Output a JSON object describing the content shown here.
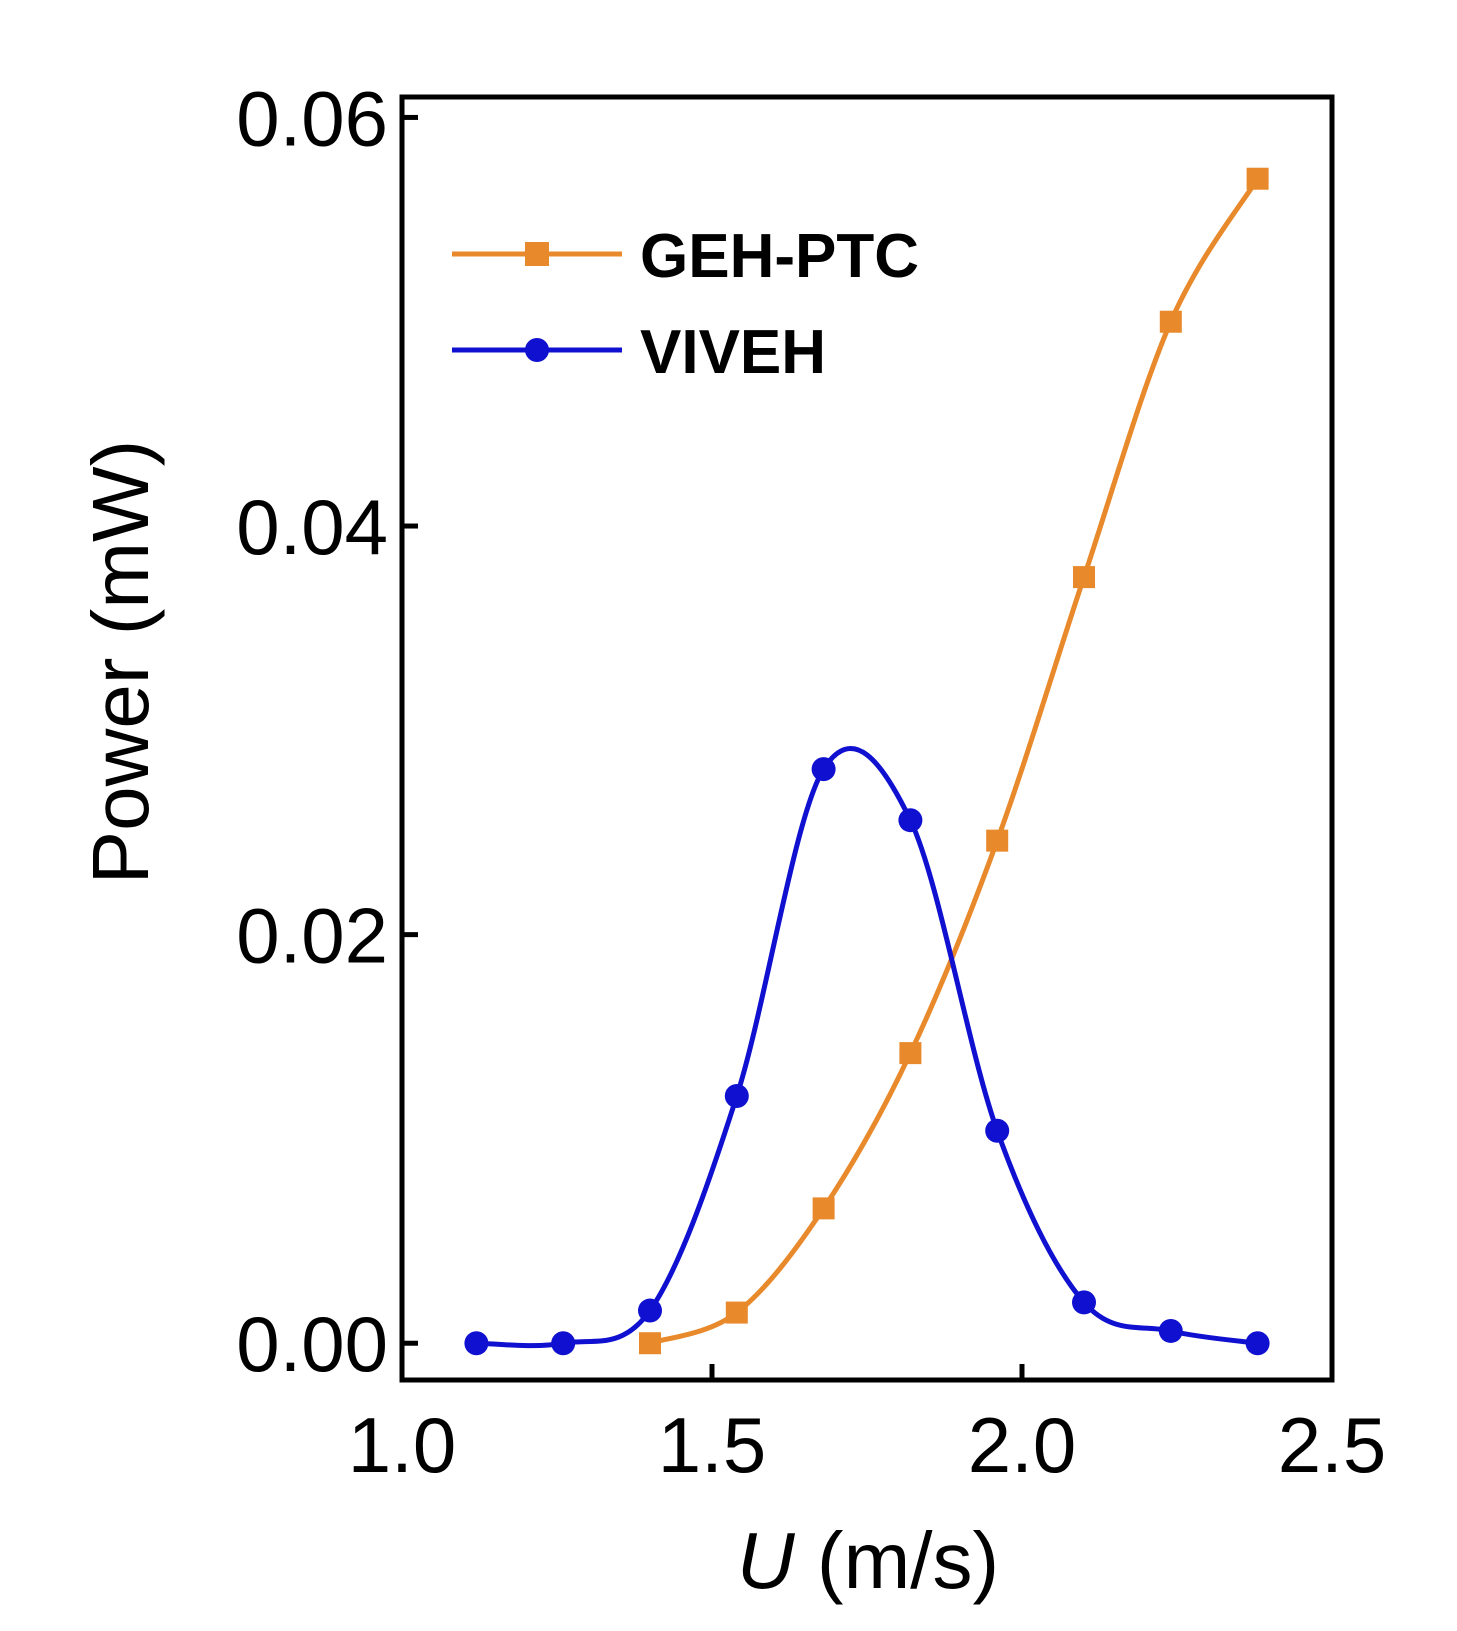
{
  "chart_data": {
    "type": "line",
    "title": "",
    "xlabel": "U",
    "xlabel_unit": " (m/s)",
    "ylabel": "Power (mW)",
    "xlim": [
      1.0,
      2.5
    ],
    "ylim": [
      -0.0018,
      0.061
    ],
    "xticks": [
      1.0,
      1.5,
      2.0,
      2.5
    ],
    "xtick_labels": [
      "1.0",
      "1.5",
      "2.0",
      "2.5"
    ],
    "yticks": [
      0.0,
      0.02,
      0.04,
      0.06
    ],
    "ytick_labels": [
      "0.00",
      "0.02",
      "0.04",
      "0.06"
    ],
    "grid": false,
    "legend_position": "top-left",
    "series": [
      {
        "name": "GEH-PTC",
        "color": "#E8892B",
        "marker": "square",
        "x": [
          1.4,
          1.54,
          1.68,
          1.82,
          1.96,
          2.1,
          2.24,
          2.38
        ],
        "y": [
          0.0,
          0.0015,
          0.0066,
          0.0142,
          0.0246,
          0.0375,
          0.05,
          0.057
        ]
      },
      {
        "name": "VIVEH",
        "color": "#1010D0",
        "marker": "circle",
        "x": [
          1.12,
          1.26,
          1.4,
          1.54,
          1.68,
          1.82,
          1.96,
          2.1,
          2.24,
          2.38
        ],
        "y": [
          0.0,
          0.0,
          0.0016,
          0.0121,
          0.0281,
          0.0256,
          0.0104,
          0.002,
          0.0006,
          0.0
        ]
      }
    ]
  }
}
